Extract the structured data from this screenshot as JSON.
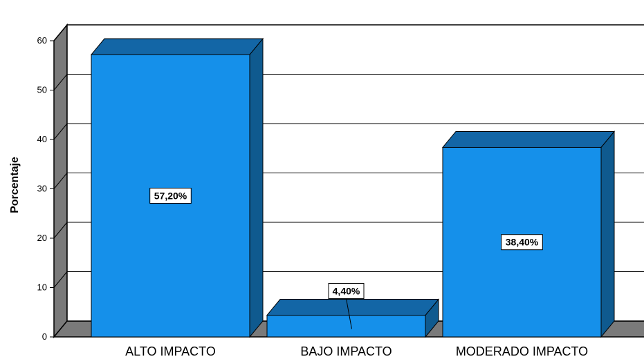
{
  "chart_data": {
    "type": "bar",
    "style": "3d",
    "categories": [
      "ALTO IMPACTO",
      "BAJO IMPACTO",
      "MODERADO IMPACTO"
    ],
    "values": [
      57.2,
      4.4,
      38.4
    ],
    "data_labels": [
      "57,20%",
      "4,40%",
      "38,40%"
    ],
    "ylabel": "Porcentaje",
    "xlabel": "",
    "ylim": [
      0,
      60
    ],
    "yticks": [
      "0",
      "10",
      "20",
      "30",
      "40",
      "50",
      "60"
    ],
    "grid": true,
    "legend": "none",
    "colors": {
      "bar_front": "#1590ea",
      "bar_side": "#0f5a8f",
      "bar_top": "#1366a6",
      "wall": "#7a7a7a",
      "grid": "#000000"
    }
  }
}
